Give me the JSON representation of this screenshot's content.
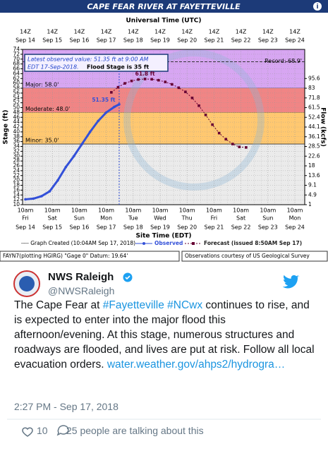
{
  "chart_data": {
    "type": "line",
    "title": "CAPE FEAR RIVER AT FAYETTEVILLE",
    "top_axis_title": "Universal Time (UTC)",
    "top_time_labels": [
      "14Z",
      "14Z",
      "14Z",
      "14Z",
      "14Z",
      "14Z",
      "14Z",
      "14Z",
      "14Z",
      "14Z",
      "14Z"
    ],
    "top_date_labels": [
      "Sep 14",
      "Sep 15",
      "Sep 16",
      "Sep 17",
      "Sep 18",
      "Sep 19",
      "Sep 20",
      "Sep 21",
      "Sep 22",
      "Sep 23",
      "Sep 24"
    ],
    "x_title": "Site Time (EDT)",
    "x_time_labels": [
      "10am",
      "10am",
      "10am",
      "10am",
      "10am",
      "10am",
      "10am",
      "10am",
      "10am",
      "10am",
      "10am"
    ],
    "x_day_labels": [
      "Fri",
      "Sat",
      "Sun",
      "Mon",
      "Tue",
      "Wed",
      "Thu",
      "Fri",
      "Sat",
      "Sun",
      "Mon"
    ],
    "x_date_labels": [
      "Sep 14",
      "Sep 15",
      "Sep 16",
      "Sep 17",
      "Sep 18",
      "Sep 19",
      "Sep 20",
      "Sep 21",
      "Sep 22",
      "Sep 23",
      "Sep 24"
    ],
    "xlim": [
      0,
      10
    ],
    "y_title": "Stage (ft)",
    "ylim": [
      10,
      74
    ],
    "yticks": [
      10,
      12,
      14,
      16,
      18,
      20,
      22,
      24,
      26,
      28,
      30,
      32,
      34,
      36,
      38,
      40,
      42,
      44,
      46,
      48,
      50,
      52,
      54,
      56,
      58,
      60,
      62,
      64,
      66,
      68,
      70,
      72,
      74
    ],
    "y2_title": "Flow (kcfs)",
    "y2ticks": [
      95.6,
      83.0,
      71.8,
      61.5,
      52.4,
      44.1,
      36.1,
      28.5,
      22.6,
      18.0,
      13.6,
      9.1,
      4.9,
      1.0
    ],
    "y2tick_stages": [
      62,
      58,
      54,
      50,
      46,
      42,
      38,
      34,
      30,
      26,
      22,
      18,
      14,
      10
    ],
    "flood_categories": [
      {
        "label": "Major: 58.0'",
        "value": 58,
        "color": "#d7a6f2"
      },
      {
        "label": "Moderate: 48.0'",
        "value": 48,
        "color": "#f08585"
      },
      {
        "label": "Minor: 35.0'",
        "value": 35,
        "color": "#ffc870"
      }
    ],
    "record": {
      "label": "Record: 68.9'",
      "value": 68.9
    },
    "info_lines": [
      "Latest observed value: 51.35 ft at 9:00 AM",
      "EDT 17-Sep-2018.",
      "Flood Stage is 35 ft"
    ],
    "series": [
      {
        "name": "Observed",
        "color": "#3350d8",
        "x": [
          0,
          0.3,
          0.6,
          0.9,
          1.2,
          1.5,
          1.8,
          2.1,
          2.4,
          2.7,
          3.0,
          3.3,
          3.48
        ],
        "values": [
          12.2,
          12.5,
          13.5,
          15.5,
          20,
          25.5,
          30,
          35,
          40,
          44.5,
          48,
          50.3,
          51.35
        ],
        "value_label": "51.35 ft"
      },
      {
        "name": "Forecast (issued 8:50AM Sep 17)",
        "color": "#660033",
        "x": [
          3.19,
          3.44,
          3.69,
          3.94,
          4.19,
          4.44,
          4.69,
          4.94,
          5.19,
          5.44,
          5.69,
          5.94,
          6.19,
          6.44,
          6.69,
          6.94,
          7.19,
          7.44,
          7.69,
          7.94,
          8.19
        ],
        "values": [
          56.3,
          58.4,
          60,
          61,
          61.6,
          61.8,
          61.7,
          61.3,
          60.6,
          59.6,
          58.2,
          56.5,
          54,
          50.8,
          47,
          43,
          39.5,
          37,
          35,
          33.8,
          33.6
        ],
        "value_label": "61.8 ft"
      }
    ],
    "graph_created": "---- Graph Created (10:04AM Sep 17, 2018)",
    "footer_left": "FAYN7(plotting HGIRG) \"Gage 0\" Datum: 19.64'",
    "footer_right": "Observations courtesy of US Geological Survey"
  },
  "tweet": {
    "name": "NWS Raleigh",
    "handle": "@NWSRaleigh",
    "text_parts": [
      "The Cape Fear at ",
      "#Fayetteville",
      "#NCwx",
      " continues to rise, and is expected to enter into the major flood this afternoon/evening. At this stage, numerous structures and roadways are flooded, and lives are put at risk. Follow all local evacuation orders. ",
      "water.weather.gov/ahps2/hydrogra…"
    ],
    "time": "2:27 PM - Sep 17, 2018",
    "likes": "10",
    "talking": "25 people are talking about this"
  }
}
